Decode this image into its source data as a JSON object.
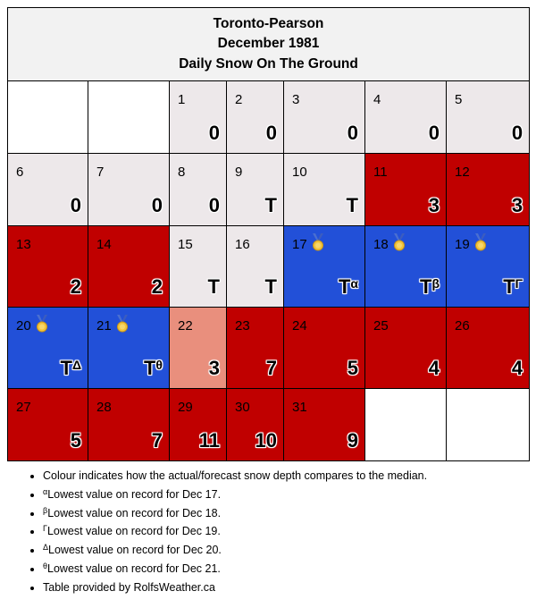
{
  "header": {
    "station": "Toronto-Pearson",
    "period": "December 1981",
    "subtitle": "Daily Snow On The Ground"
  },
  "colors": {
    "near_median": "#ede8ea",
    "above_median": "#c00000",
    "record_low": "#2250d8",
    "slightly_above": "#e98f7d"
  },
  "weeks": [
    [
      {
        "empty": true
      },
      {
        "empty": true
      },
      {
        "day": "1",
        "value": "0",
        "level": "near_median"
      },
      {
        "day": "2",
        "value": "0",
        "level": "near_median"
      },
      {
        "day": "3",
        "value": "0",
        "level": "near_median"
      },
      {
        "day": "4",
        "value": "0",
        "level": "near_median"
      },
      {
        "day": "5",
        "value": "0",
        "level": "near_median"
      }
    ],
    [
      {
        "day": "6",
        "value": "0",
        "level": "near_median"
      },
      {
        "day": "7",
        "value": "0",
        "level": "near_median"
      },
      {
        "day": "8",
        "value": "0",
        "level": "near_median"
      },
      {
        "day": "9",
        "value": "T",
        "level": "near_median"
      },
      {
        "day": "10",
        "value": "T",
        "level": "near_median"
      },
      {
        "day": "11",
        "value": "3",
        "level": "above_median"
      },
      {
        "day": "12",
        "value": "3",
        "level": "above_median"
      }
    ],
    [
      {
        "day": "13",
        "value": "2",
        "level": "above_median"
      },
      {
        "day": "14",
        "value": "2",
        "level": "above_median"
      },
      {
        "day": "15",
        "value": "T",
        "level": "near_median"
      },
      {
        "day": "16",
        "value": "T",
        "level": "near_median"
      },
      {
        "day": "17",
        "value": "T",
        "sup": "α",
        "level": "record_low",
        "medal": true
      },
      {
        "day": "18",
        "value": "T",
        "sup": "β",
        "level": "record_low",
        "medal": true
      },
      {
        "day": "19",
        "value": "T",
        "sup": "Γ",
        "level": "record_low",
        "medal": true
      }
    ],
    [
      {
        "day": "20",
        "value": "T",
        "sup": "Δ",
        "level": "record_low",
        "medal": true
      },
      {
        "day": "21",
        "value": "T",
        "sup": "θ",
        "level": "record_low",
        "medal": true
      },
      {
        "day": "22",
        "value": "3",
        "level": "slightly_above"
      },
      {
        "day": "23",
        "value": "7",
        "level": "above_median"
      },
      {
        "day": "24",
        "value": "5",
        "level": "above_median"
      },
      {
        "day": "25",
        "value": "4",
        "level": "above_median"
      },
      {
        "day": "26",
        "value": "4",
        "level": "above_median"
      }
    ],
    [
      {
        "day": "27",
        "value": "5",
        "level": "above_median"
      },
      {
        "day": "28",
        "value": "7",
        "level": "above_median"
      },
      {
        "day": "29",
        "value": "11",
        "level": "above_median"
      },
      {
        "day": "30",
        "value": "10",
        "level": "above_median"
      },
      {
        "day": "31",
        "value": "9",
        "level": "above_median"
      },
      {
        "empty": true
      },
      {
        "empty": true
      }
    ]
  ],
  "notes": [
    {
      "sup": "",
      "text": "Colour indicates how the actual/forecast snow depth compares to the median."
    },
    {
      "sup": "α",
      "text": "Lowest value on record for Dec 17."
    },
    {
      "sup": "β",
      "text": "Lowest value on record for Dec 18."
    },
    {
      "sup": "Γ",
      "text": "Lowest value on record for Dec 19."
    },
    {
      "sup": "Δ",
      "text": "Lowest value on record for Dec 20."
    },
    {
      "sup": "θ",
      "text": "Lowest value on record for Dec 21."
    },
    {
      "sup": "",
      "text": "Table provided by RolfsWeather.ca"
    }
  ]
}
